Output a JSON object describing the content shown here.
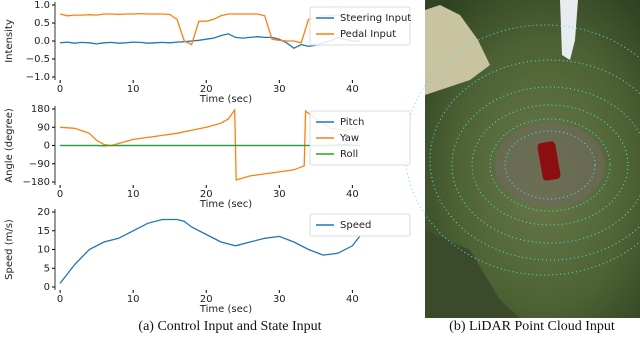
{
  "chart_data": [
    {
      "type": "line",
      "ylabel": "Intensity",
      "xlabel": "Time (sec)",
      "legend": "upper right",
      "x": [
        0,
        1,
        2,
        3,
        4,
        5,
        6,
        7,
        8,
        9,
        10,
        11,
        12,
        13,
        14,
        15,
        16,
        17,
        18,
        19,
        20,
        21,
        22,
        23,
        24,
        25,
        26,
        27,
        28,
        29,
        30,
        31,
        32,
        33,
        34,
        35,
        36,
        37,
        38,
        39,
        40,
        41
      ],
      "xlim": [
        -0.7,
        42
      ],
      "xticks": [
        0,
        10,
        20,
        30,
        40
      ],
      "ylim": [
        -1,
        1
      ],
      "yticks": [
        {
          "value": -1,
          "label": "−1.0"
        },
        {
          "value": -0.5,
          "label": "−0.5"
        },
        {
          "value": 0,
          "label": "0.0"
        },
        {
          "value": 0.5,
          "label": "0.5"
        },
        {
          "value": 1,
          "label": "1.0"
        }
      ],
      "series": [
        {
          "name": "Steering Input",
          "color": "#1f77b4",
          "values": [
            -0.05,
            -0.03,
            -0.06,
            -0.04,
            -0.05,
            -0.08,
            -0.05,
            -0.04,
            -0.06,
            -0.05,
            -0.03,
            -0.04,
            -0.06,
            -0.05,
            -0.04,
            -0.05,
            -0.03,
            -0.02,
            0.0,
            0.02,
            0.05,
            0.08,
            0.15,
            0.2,
            0.1,
            0.08,
            0.1,
            0.12,
            0.1,
            0.1,
            0.05,
            -0.05,
            -0.2,
            -0.1,
            -0.15,
            -0.12,
            -0.05,
            0.0,
            0.1,
            0.05,
            0.0,
            0.0
          ]
        },
        {
          "name": "Pedal Input",
          "color": "#ff7f0e",
          "values": [
            0.75,
            0.7,
            0.72,
            0.72,
            0.73,
            0.72,
            0.75,
            0.75,
            0.74,
            0.75,
            0.75,
            0.76,
            0.75,
            0.75,
            0.75,
            0.74,
            0.6,
            0.0,
            -0.1,
            0.55,
            0.55,
            0.6,
            0.7,
            0.75,
            0.75,
            0.75,
            0.75,
            0.75,
            0.7,
            0.05,
            0.02,
            0.0,
            0.0,
            -0.05,
            0.6,
            0.65,
            0.7,
            0.7,
            0.72,
            0.72,
            0.7,
            0.72
          ]
        }
      ]
    },
    {
      "type": "line",
      "ylabel": "Angle (degree)",
      "xlabel": "Time (sec)",
      "legend": "upper right",
      "x": [
        0,
        2,
        4,
        5,
        6,
        7,
        8,
        10,
        12,
        14,
        16,
        18,
        20,
        22,
        23,
        23.9,
        24.1,
        26,
        28,
        30,
        32,
        33.4,
        33.6,
        35,
        37,
        39,
        41
      ],
      "xlim": [
        -0.7,
        42
      ],
      "xticks": [
        0,
        10,
        20,
        30,
        40
      ],
      "ylim": [
        -180,
        180
      ],
      "yticks": [
        {
          "value": -180,
          "label": "−180"
        },
        {
          "value": -90,
          "label": "−90"
        },
        0,
        90,
        180
      ],
      "series": [
        {
          "name": "Pitch",
          "color": "#1f77b4",
          "values": [
            0,
            0,
            0,
            0,
            0,
            0,
            0,
            0,
            0,
            0,
            0,
            0,
            0,
            0,
            0,
            0,
            0,
            0,
            0,
            0,
            0,
            0,
            0,
            0,
            0,
            5,
            0
          ]
        },
        {
          "name": "Yaw",
          "color": "#ff7f0e",
          "values": [
            90,
            85,
            60,
            25,
            5,
            0,
            10,
            30,
            40,
            50,
            60,
            75,
            90,
            110,
            130,
            175,
            -170,
            -150,
            -140,
            -130,
            -120,
            -100,
            170,
            130,
            85,
            75,
            90
          ]
        },
        {
          "name": "Roll",
          "color": "#2ca02c",
          "values": [
            0,
            0,
            0,
            0,
            -2,
            0,
            0,
            0,
            0,
            0,
            0,
            0,
            0,
            0,
            0,
            0,
            0,
            0,
            0,
            0,
            0,
            0,
            0,
            0,
            0,
            2,
            0
          ]
        }
      ]
    },
    {
      "type": "line",
      "ylabel": "Speed (m/s)",
      "xlabel": "Time (sec)",
      "legend": "upper right",
      "x": [
        0,
        2,
        4,
        6,
        8,
        10,
        12,
        14,
        16,
        17,
        18,
        20,
        22,
        24,
        26,
        28,
        30,
        32,
        34,
        36,
        38,
        40,
        41
      ],
      "xlim": [
        -0.7,
        42
      ],
      "xticks": [
        0,
        10,
        20,
        30,
        40
      ],
      "ylim": [
        0,
        20
      ],
      "yticks": [
        0,
        5,
        10,
        15,
        20
      ],
      "series": [
        {
          "name": "Speed",
          "color": "#1f77b4",
          "values": [
            1,
            6,
            10,
            12,
            13,
            15,
            17,
            18,
            18,
            17.5,
            16,
            14,
            12,
            11,
            12,
            13,
            13.5,
            12,
            10,
            8.5,
            9,
            11,
            13.5
          ]
        }
      ]
    }
  ],
  "captions": [
    "(a) Control Input and State Input",
    "(b) LiDAR Point Cloud Input"
  ]
}
